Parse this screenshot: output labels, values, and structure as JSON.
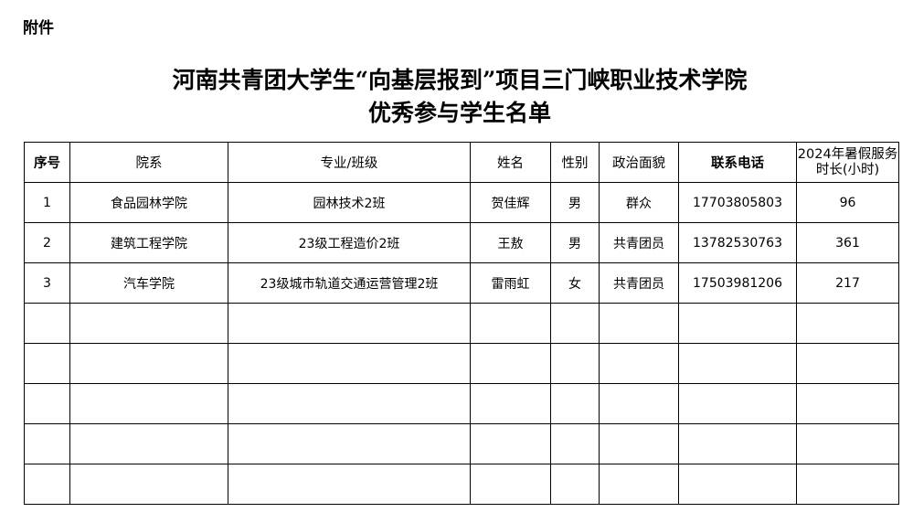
{
  "attachment_label": "附件",
  "title_line1": "河南共青团大学生“向基层报到”项目三门峡职业技术学院",
  "title_line2": "优秀参与学生名单",
  "table": {
    "headers": [
      "序号",
      "院系",
      "专业/班级",
      "姓名",
      "性别",
      "政治面貌",
      "联系电话",
      "2024年暑假服务时长(小时)"
    ],
    "rows": [
      [
        "1",
        "食品园林学院",
        "园林技术2班",
        "贺佳辉",
        "男",
        "群众",
        "17703805803",
        "96"
      ],
      [
        "2",
        "建筑工程学院",
        "23级工程造价2班",
        "王敖",
        "男",
        "共青团员",
        "13782530763",
        "361"
      ],
      [
        "3",
        "汽车学院",
        "23级城市轨道交通运营管理2班",
        "雷雨虹",
        "女",
        "共青团员",
        "17503981206",
        "217"
      ]
    ]
  }
}
